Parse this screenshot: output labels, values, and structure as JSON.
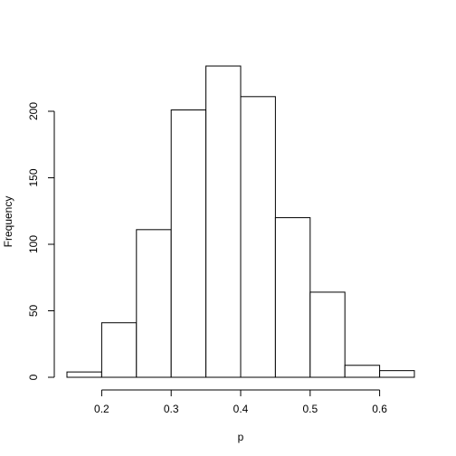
{
  "chart_data": {
    "type": "bar",
    "title": "",
    "xlabel": "p",
    "ylabel": "Frequency",
    "bins": [
      {
        "x0": 0.15,
        "x1": 0.2,
        "count": 4
      },
      {
        "x0": 0.2,
        "x1": 0.25,
        "count": 41
      },
      {
        "x0": 0.25,
        "x1": 0.3,
        "count": 111
      },
      {
        "x0": 0.3,
        "x1": 0.35,
        "count": 201
      },
      {
        "x0": 0.35,
        "x1": 0.4,
        "count": 234
      },
      {
        "x0": 0.4,
        "x1": 0.45,
        "count": 211
      },
      {
        "x0": 0.45,
        "x1": 0.5,
        "count": 120
      },
      {
        "x0": 0.5,
        "x1": 0.55,
        "count": 64
      },
      {
        "x0": 0.55,
        "x1": 0.6,
        "count": 9
      },
      {
        "x0": 0.6,
        "x1": 0.65,
        "count": 5
      }
    ],
    "xlim": [
      0.15,
      0.65
    ],
    "ylim": [
      0,
      234
    ],
    "x_ticks": [
      0.2,
      0.3,
      0.4,
      0.5,
      0.6
    ],
    "x_tick_labels": [
      "0.2",
      "0.3",
      "0.4",
      "0.5",
      "0.6"
    ],
    "y_ticks": [
      0,
      50,
      100,
      150,
      200
    ],
    "y_tick_labels": [
      "0",
      "50",
      "100",
      "150",
      "200"
    ],
    "grid": false,
    "legend": "none"
  }
}
